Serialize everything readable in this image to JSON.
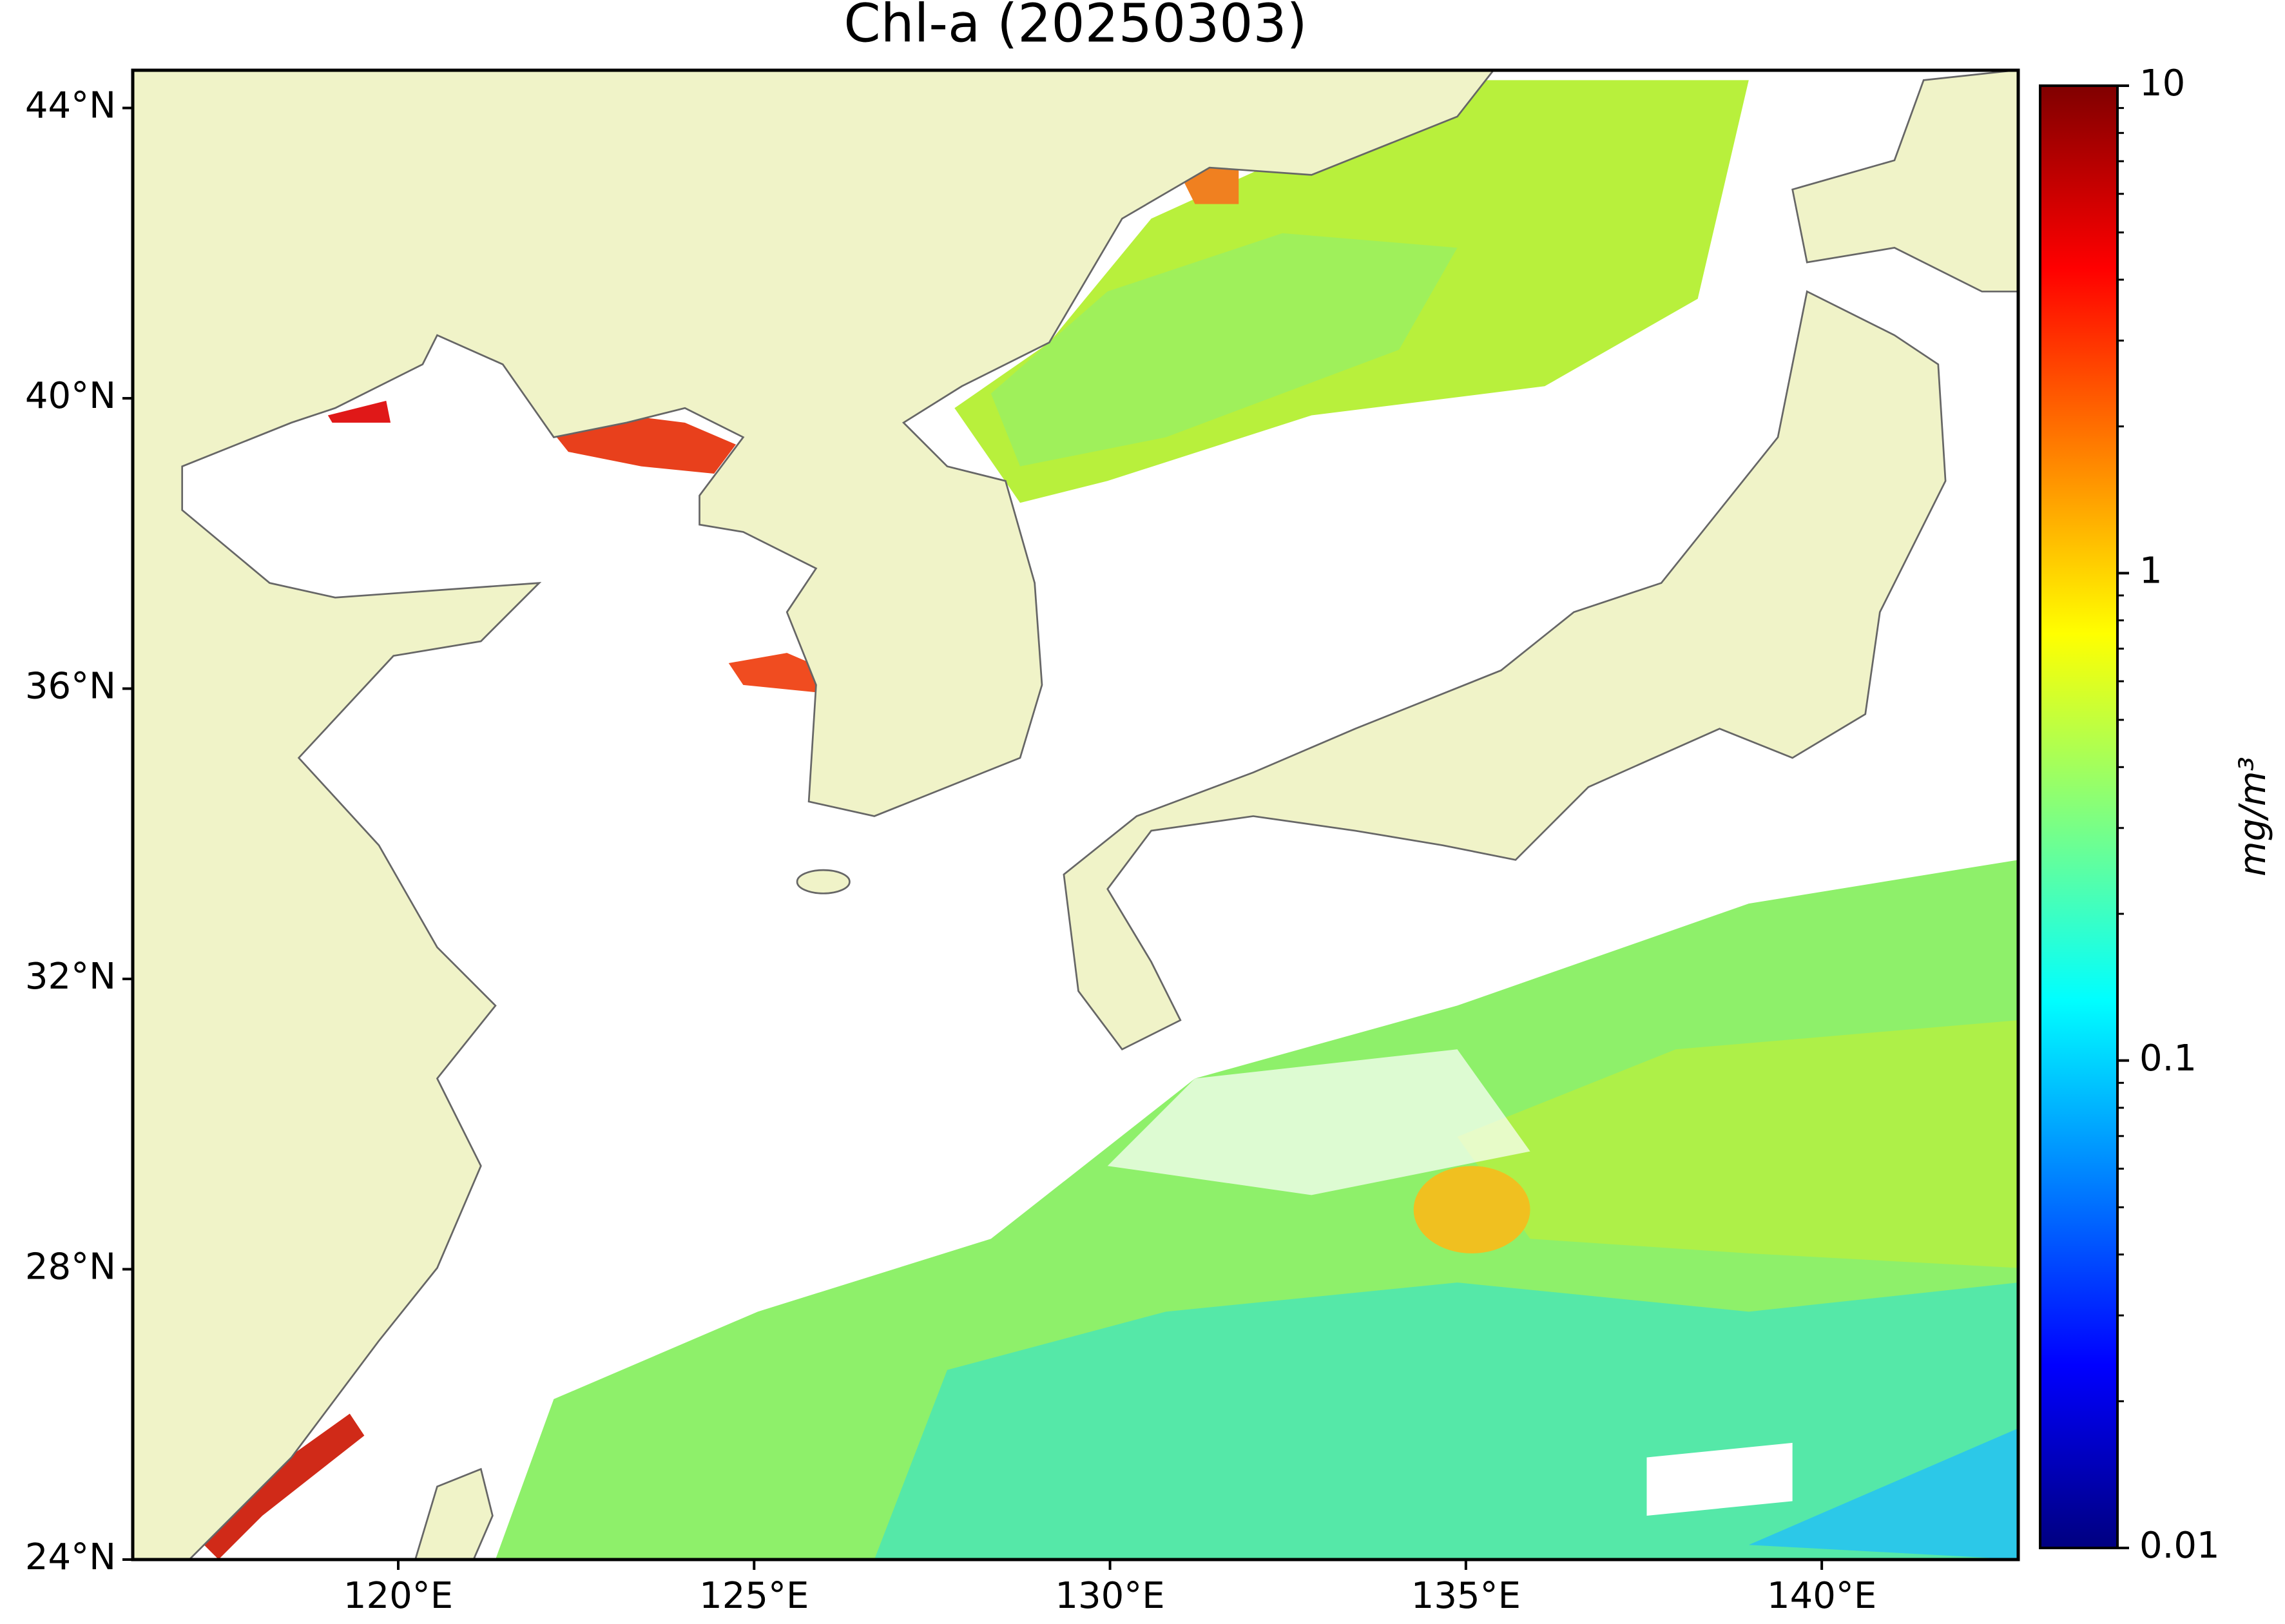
{
  "chart_data": {
    "type": "map",
    "title": "Chl-a (20250303)",
    "xlim": [
      116.27,
      142.76
    ],
    "xticks": [
      {
        "value": 120,
        "label": "120°E"
      },
      {
        "value": 125,
        "label": "125°E"
      },
      {
        "value": 130,
        "label": "130°E"
      },
      {
        "value": 135,
        "label": "135°E"
      },
      {
        "value": 140,
        "label": "140°E"
      }
    ],
    "ylim": [
      24,
      44.52
    ],
    "yticks": [
      {
        "value": 24,
        "label": "24°N"
      },
      {
        "value": 28,
        "label": "28°N"
      },
      {
        "value": 32,
        "label": "32°N"
      },
      {
        "value": 36,
        "label": "36°N"
      },
      {
        "value": 40,
        "label": "40°N"
      },
      {
        "value": 44,
        "label": "44°N"
      }
    ],
    "colorbar": {
      "label": "mg/m³",
      "lim": [
        0.01,
        10
      ],
      "ticks": [
        0.01,
        0.1,
        1,
        10
      ],
      "log": true,
      "colormap": "jet"
    }
  }
}
